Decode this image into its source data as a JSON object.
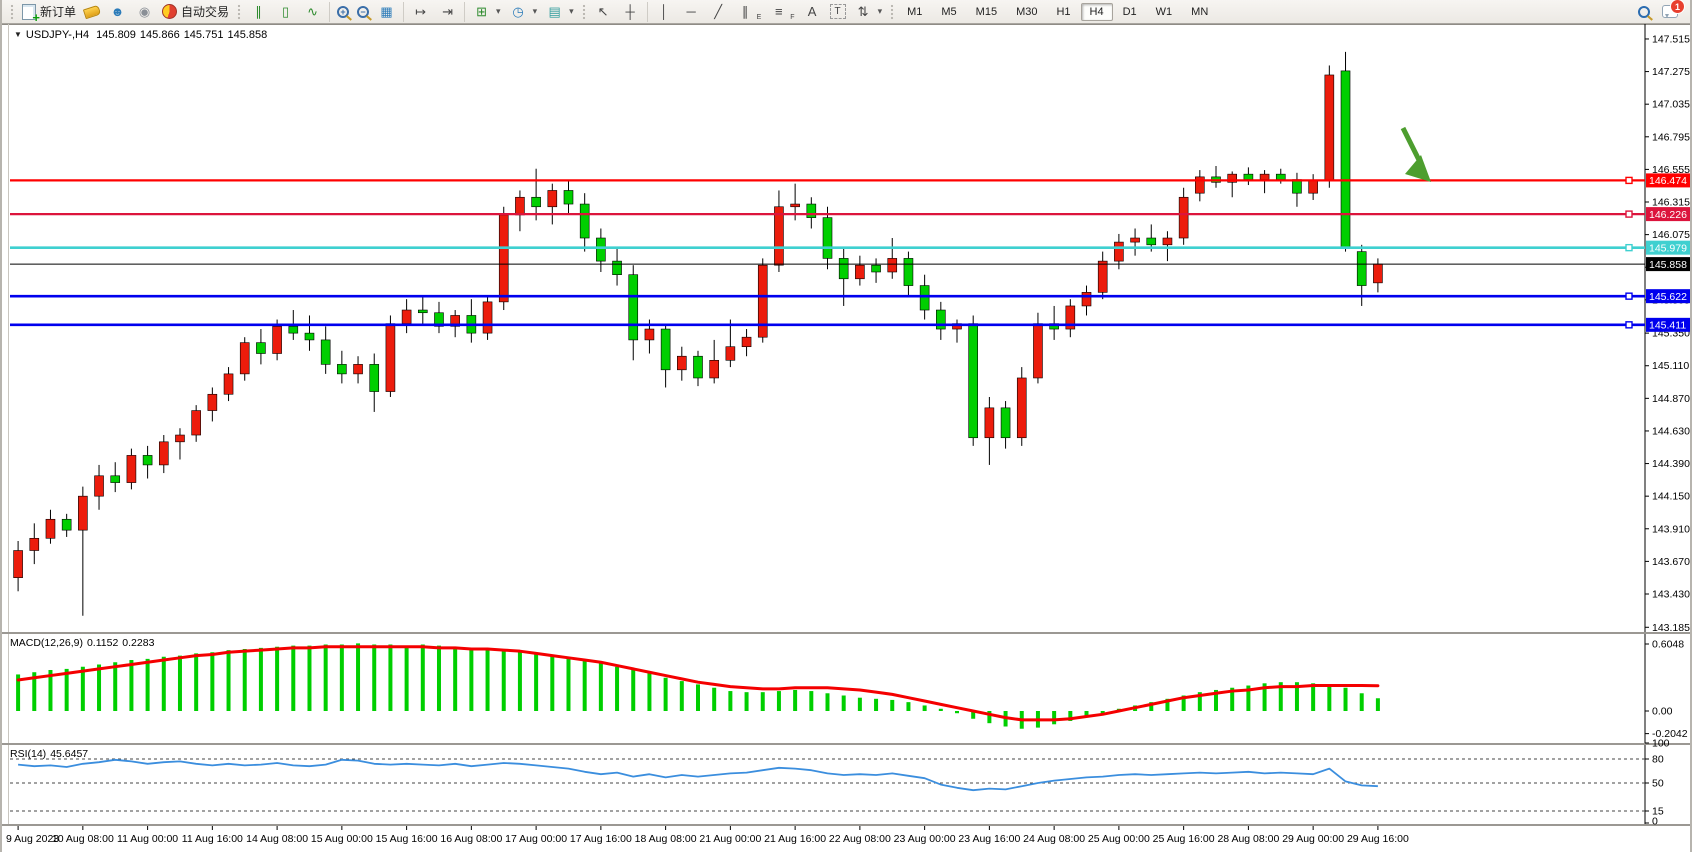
{
  "toolbar": {
    "new_order_label": "新订单",
    "auto_trading_label": "自动交易",
    "timeframes": {
      "items": [
        "M1",
        "M5",
        "M15",
        "M30",
        "H1",
        "H4",
        "D1",
        "W1",
        "MN"
      ],
      "active": "H4"
    },
    "notification_badge": "1"
  },
  "icons": {
    "dropdown": "▾",
    "bar_chart": "∥",
    "candlestick": "▯",
    "line_chart": "∿",
    "tiles": "▦",
    "autoscroll": "↦",
    "chart_shift": "⇥",
    "indicators": "⊞",
    "periods": "◷",
    "templates": "▤",
    "cursor": "↖",
    "crosshair": "┼",
    "vline": "│",
    "hline": "─",
    "trendline": "╱",
    "channel": "∥",
    "channel_sub": "E",
    "fibonacci": "≡",
    "fibonacci_sub": "F",
    "text": "A",
    "text_label": "T",
    "arrows": "⇅",
    "person": "☻",
    "signal": "◉",
    "zoom_in": "+",
    "zoom_out": "−"
  },
  "title": {
    "dropdown": "▼",
    "symbol": "USDJPY-,H4",
    "open": "145.809",
    "high": "145.866",
    "low": "145.751",
    "close": "145.858"
  },
  "chart_data": {
    "type": "candlestick",
    "symbol": "USDJPY-",
    "timeframe": "H4",
    "colors": {
      "up_candle": "#ec1c0c",
      "down_candle": "#00cf00",
      "wick": "#000000",
      "macd_histogram": "#00cf00",
      "macd_signal": "#f40000",
      "rsi_line": "#3b8ede",
      "annotation_arrow": "#4d9e2f"
    },
    "y_axis": {
      "ticks": [
        "147.515",
        "147.275",
        "147.035",
        "146.795",
        "146.555",
        "146.315",
        "146.075",
        "145.835",
        "145.595",
        "145.350",
        "145.110",
        "144.870",
        "144.630",
        "144.390",
        "144.150",
        "143.910",
        "143.670",
        "143.430",
        "143.185"
      ]
    },
    "levels": [
      {
        "price": 146.474,
        "label": "146.474",
        "color": "#ff0000",
        "width": 2.2
      },
      {
        "price": 146.226,
        "label": "146.226",
        "color": "#dc143c",
        "width": 2.2
      },
      {
        "price": 145.979,
        "label": "145.979",
        "color": "#3fd0d0",
        "width": 2.6
      },
      {
        "price": 145.622,
        "label": "145.622",
        "color": "#0000ee",
        "width": 2.6
      },
      {
        "price": 145.411,
        "label": "145.411",
        "color": "#0000ee",
        "width": 2.6
      }
    ],
    "current_price": {
      "price": 145.858,
      "label": "145.858",
      "color": "#000000"
    },
    "x_labels": [
      "9 Aug 2023",
      "10 Aug 08:00",
      "11 Aug 00:00",
      "11 Aug 16:00",
      "14 Aug 08:00",
      "15 Aug 00:00",
      "15 Aug 16:00",
      "16 Aug 08:00",
      "17 Aug 00:00",
      "17 Aug 16:00",
      "18 Aug 08:00",
      "21 Aug 00:00",
      "21 Aug 16:00",
      "22 Aug 08:00",
      "23 Aug 00:00",
      "23 Aug 16:00",
      "24 Aug 08:00",
      "25 Aug 00:00",
      "25 Aug 16:00",
      "28 Aug 08:00",
      "29 Aug 00:00",
      "29 Aug 16:00"
    ],
    "candles_ohlc": [
      [
        143.55,
        143.82,
        143.45,
        143.75
      ],
      [
        143.75,
        143.95,
        143.65,
        143.84
      ],
      [
        143.84,
        144.05,
        143.8,
        143.98
      ],
      [
        143.98,
        144.02,
        143.85,
        143.9
      ],
      [
        143.9,
        144.22,
        143.27,
        144.15
      ],
      [
        144.15,
        144.38,
        144.05,
        144.3
      ],
      [
        144.3,
        144.4,
        144.18,
        144.25
      ],
      [
        144.25,
        144.5,
        144.2,
        144.45
      ],
      [
        144.45,
        144.52,
        144.28,
        144.38
      ],
      [
        144.38,
        144.6,
        144.32,
        144.55
      ],
      [
        144.55,
        144.65,
        144.42,
        144.6
      ],
      [
        144.6,
        144.82,
        144.55,
        144.78
      ],
      [
        144.78,
        144.95,
        144.7,
        144.9
      ],
      [
        144.9,
        145.1,
        144.85,
        145.05
      ],
      [
        145.05,
        145.32,
        145.0,
        145.28
      ],
      [
        145.28,
        145.38,
        145.12,
        145.2
      ],
      [
        145.2,
        145.45,
        145.15,
        145.4
      ],
      [
        145.4,
        145.52,
        145.3,
        145.35
      ],
      [
        145.35,
        145.48,
        145.22,
        145.3
      ],
      [
        145.3,
        145.4,
        145.05,
        145.12
      ],
      [
        145.12,
        145.22,
        144.98,
        145.05
      ],
      [
        145.05,
        145.18,
        144.98,
        145.12
      ],
      [
        145.12,
        145.2,
        144.77,
        144.92
      ],
      [
        144.92,
        145.48,
        144.88,
        145.42
      ],
      [
        145.42,
        145.6,
        145.35,
        145.52
      ],
      [
        145.52,
        145.62,
        145.42,
        145.5
      ],
      [
        145.5,
        145.58,
        145.35,
        145.4
      ],
      [
        145.4,
        145.52,
        145.32,
        145.48
      ],
      [
        145.48,
        145.6,
        145.28,
        145.35
      ],
      [
        145.35,
        145.62,
        145.3,
        145.58
      ],
      [
        145.58,
        146.28,
        145.52,
        146.22
      ],
      [
        146.22,
        146.4,
        146.1,
        146.35
      ],
      [
        146.35,
        146.56,
        146.18,
        146.28
      ],
      [
        146.28,
        146.45,
        146.15,
        146.4
      ],
      [
        146.4,
        146.48,
        146.22,
        146.3
      ],
      [
        146.3,
        146.38,
        145.95,
        146.05
      ],
      [
        146.05,
        146.12,
        145.8,
        145.88
      ],
      [
        145.88,
        145.98,
        145.7,
        145.78
      ],
      [
        145.78,
        145.85,
        145.15,
        145.3
      ],
      [
        145.3,
        145.45,
        145.2,
        145.38
      ],
      [
        145.38,
        145.42,
        144.95,
        145.08
      ],
      [
        145.08,
        145.25,
        145.0,
        145.18
      ],
      [
        145.18,
        145.22,
        144.96,
        145.02
      ],
      [
        145.02,
        145.3,
        144.98,
        145.15
      ],
      [
        145.15,
        145.45,
        145.1,
        145.25
      ],
      [
        145.25,
        145.38,
        145.18,
        145.32
      ],
      [
        145.32,
        145.9,
        145.28,
        145.85
      ],
      [
        145.85,
        146.4,
        145.8,
        146.28
      ],
      [
        146.28,
        146.45,
        146.18,
        146.3
      ],
      [
        146.3,
        146.35,
        146.12,
        146.2
      ],
      [
        146.2,
        146.28,
        145.82,
        145.9
      ],
      [
        145.9,
        145.98,
        145.55,
        145.75
      ],
      [
        145.75,
        145.92,
        145.7,
        145.85
      ],
      [
        145.85,
        145.9,
        145.72,
        145.8
      ],
      [
        145.8,
        146.05,
        145.75,
        145.9
      ],
      [
        145.9,
        145.95,
        145.62,
        145.7
      ],
      [
        145.7,
        145.78,
        145.45,
        145.52
      ],
      [
        145.52,
        145.58,
        145.3,
        145.38
      ],
      [
        145.38,
        145.45,
        145.28,
        145.42
      ],
      [
        145.42,
        145.48,
        144.52,
        144.58
      ],
      [
        144.58,
        144.88,
        144.38,
        144.8
      ],
      [
        144.8,
        144.85,
        144.5,
        144.58
      ],
      [
        144.58,
        145.1,
        144.52,
        145.02
      ],
      [
        145.02,
        145.5,
        144.98,
        145.42
      ],
      [
        145.42,
        145.55,
        145.3,
        145.38
      ],
      [
        145.38,
        145.6,
        145.32,
        145.55
      ],
      [
        145.55,
        145.7,
        145.48,
        145.65
      ],
      [
        145.65,
        145.95,
        145.6,
        145.88
      ],
      [
        145.88,
        146.08,
        145.82,
        146.02
      ],
      [
        146.02,
        146.12,
        145.92,
        146.05
      ],
      [
        146.05,
        146.15,
        145.95,
        146.0
      ],
      [
        146.0,
        146.1,
        145.88,
        146.05
      ],
      [
        146.05,
        146.42,
        146.0,
        146.35
      ],
      [
        146.38,
        146.55,
        146.32,
        146.5
      ],
      [
        146.5,
        146.58,
        146.42,
        146.46
      ],
      [
        146.46,
        146.54,
        146.35,
        146.52
      ],
      [
        146.52,
        146.57,
        146.44,
        146.48
      ],
      [
        146.48,
        146.55,
        146.38,
        146.52
      ],
      [
        146.52,
        146.56,
        146.45,
        146.48
      ],
      [
        146.48,
        146.53,
        146.28,
        146.38
      ],
      [
        146.38,
        146.52,
        146.33,
        146.47
      ],
      [
        146.47,
        147.32,
        146.42,
        147.25
      ],
      [
        147.28,
        147.42,
        145.95,
        145.98
      ],
      [
        145.95,
        146.0,
        145.55,
        145.7
      ],
      [
        145.72,
        145.9,
        145.65,
        145.858
      ]
    ],
    "indicators": {
      "macd": {
        "name": "MACD(12,26,9)",
        "value": "0.1152",
        "signal_value": "0.2283",
        "axis_ticks": [
          "0.6048",
          "0.00",
          "-0.2042"
        ],
        "histogram": [
          0.33,
          0.35,
          0.37,
          0.38,
          0.4,
          0.42,
          0.44,
          0.46,
          0.47,
          0.49,
          0.5,
          0.52,
          0.53,
          0.55,
          0.56,
          0.57,
          0.58,
          0.59,
          0.59,
          0.6,
          0.6,
          0.61,
          0.6,
          0.6,
          0.59,
          0.6,
          0.59,
          0.58,
          0.57,
          0.56,
          0.55,
          0.53,
          0.52,
          0.5,
          0.48,
          0.46,
          0.43,
          0.4,
          0.37,
          0.34,
          0.3,
          0.27,
          0.24,
          0.21,
          0.18,
          0.17,
          0.17,
          0.18,
          0.19,
          0.18,
          0.16,
          0.14,
          0.12,
          0.11,
          0.1,
          0.08,
          0.05,
          0.02,
          -0.02,
          -0.07,
          -0.11,
          -0.14,
          -0.16,
          -0.15,
          -0.12,
          -0.09,
          -0.05,
          -0.02,
          0.02,
          0.05,
          0.08,
          0.11,
          0.14,
          0.17,
          0.19,
          0.21,
          0.23,
          0.25,
          0.26,
          0.26,
          0.25,
          0.24,
          0.21,
          0.16,
          0.115
        ],
        "signal": [
          0.28,
          0.3,
          0.32,
          0.34,
          0.36,
          0.38,
          0.4,
          0.42,
          0.44,
          0.46,
          0.48,
          0.5,
          0.51,
          0.53,
          0.54,
          0.55,
          0.56,
          0.57,
          0.57,
          0.58,
          0.58,
          0.58,
          0.58,
          0.58,
          0.58,
          0.58,
          0.57,
          0.57,
          0.56,
          0.56,
          0.55,
          0.54,
          0.52,
          0.5,
          0.48,
          0.46,
          0.44,
          0.41,
          0.38,
          0.35,
          0.32,
          0.29,
          0.26,
          0.24,
          0.22,
          0.21,
          0.2,
          0.2,
          0.21,
          0.21,
          0.21,
          0.2,
          0.19,
          0.17,
          0.15,
          0.12,
          0.09,
          0.06,
          0.03,
          0.0,
          -0.03,
          -0.06,
          -0.08,
          -0.08,
          -0.08,
          -0.07,
          -0.05,
          -0.03,
          0.0,
          0.03,
          0.06,
          0.09,
          0.12,
          0.14,
          0.16,
          0.18,
          0.19,
          0.21,
          0.22,
          0.22,
          0.23,
          0.23,
          0.23,
          0.23,
          0.228
        ]
      },
      "rsi": {
        "name": "RSI(14)",
        "value": "45.6457",
        "axis_ticks": [
          "100",
          "80",
          "50",
          "15",
          "0"
        ],
        "dashed_levels": [
          80,
          50,
          15
        ],
        "values": [
          73,
          71,
          72,
          70,
          74,
          76,
          79,
          77,
          74,
          76,
          77,
          74,
          72,
          74,
          72,
          73,
          75,
          72,
          71,
          73,
          79,
          78,
          74,
          73,
          74,
          73,
          72,
          74,
          71,
          73,
          75,
          74,
          72,
          70,
          68,
          64,
          61,
          63,
          58,
          61,
          57,
          60,
          58,
          60,
          62,
          63,
          66,
          69,
          68,
          66,
          62,
          60,
          61,
          60,
          62,
          59,
          56,
          48,
          44,
          41,
          43,
          42,
          46,
          50,
          53,
          55,
          57,
          58,
          60,
          61,
          60,
          61,
          62,
          63,
          62,
          63,
          64,
          62,
          63,
          62,
          61,
          68,
          52,
          47,
          46
        ]
      }
    },
    "annotation": {
      "type": "arrow",
      "points_at_price": 146.474
    }
  }
}
